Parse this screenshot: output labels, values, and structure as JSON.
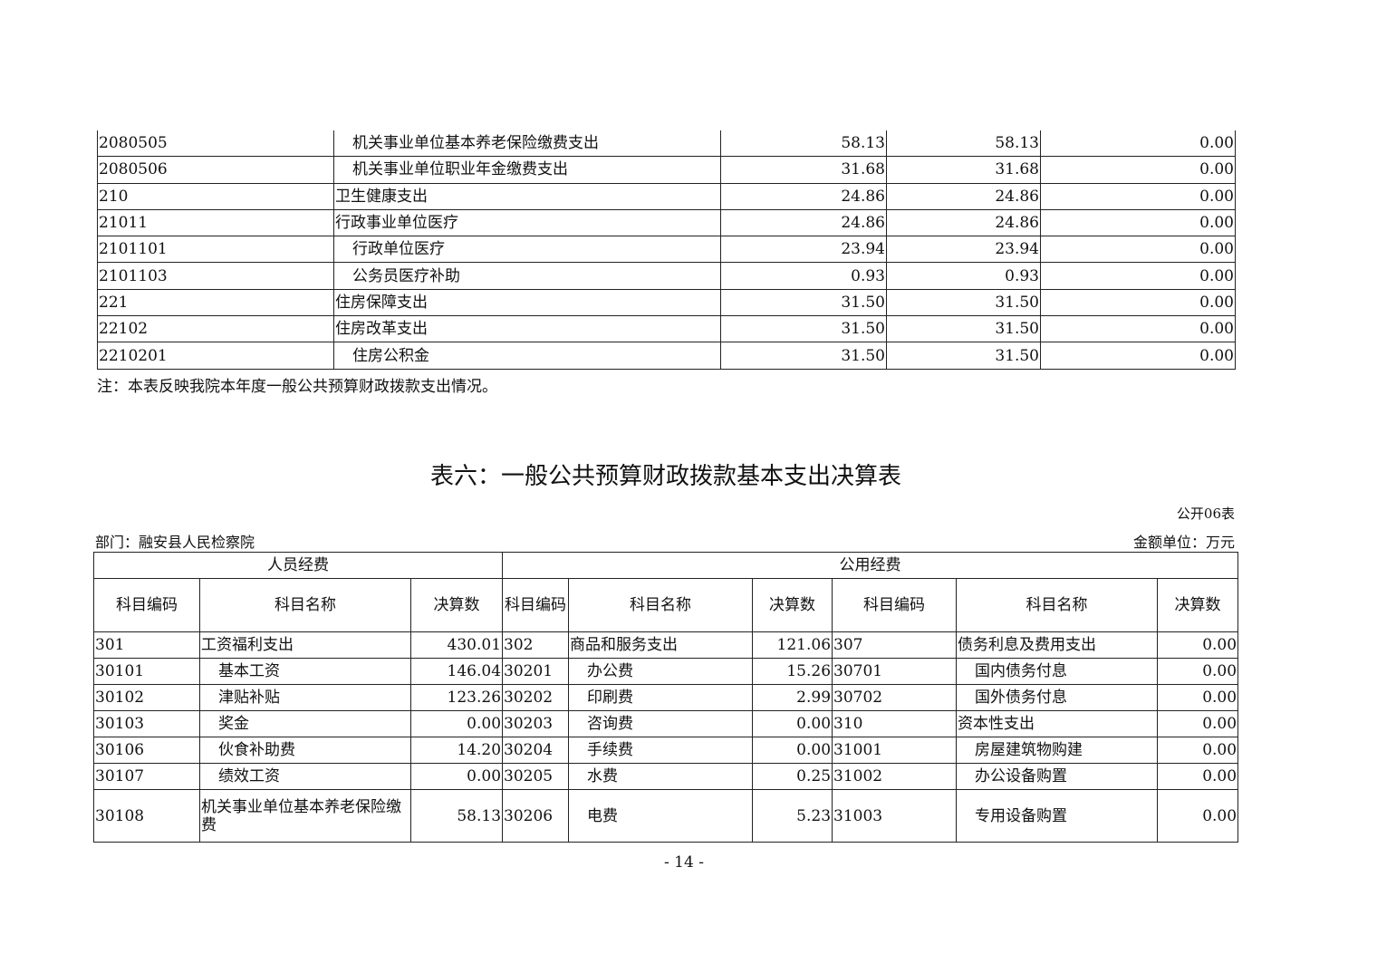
{
  "table_top": {
    "rows": [
      {
        "code": "2080505",
        "name": "机关事业单位基本养老保险缴费支出",
        "indent": true,
        "total": "58.13",
        "basic": "58.13",
        "project": "0.00"
      },
      {
        "code": "2080506",
        "name": "机关事业单位职业年金缴费支出",
        "indent": true,
        "total": "31.68",
        "basic": "31.68",
        "project": "0.00"
      },
      {
        "code": "210",
        "name": "卫生健康支出",
        "indent": false,
        "total": "24.86",
        "basic": "24.86",
        "project": "0.00"
      },
      {
        "code": "21011",
        "name": "行政事业单位医疗",
        "indent": false,
        "total": "24.86",
        "basic": "24.86",
        "project": "0.00"
      },
      {
        "code": "2101101",
        "name": "行政单位医疗",
        "indent": true,
        "total": "23.94",
        "basic": "23.94",
        "project": "0.00"
      },
      {
        "code": "2101103",
        "name": "公务员医疗补助",
        "indent": true,
        "total": "0.93",
        "basic": "0.93",
        "project": "0.00"
      },
      {
        "code": "221",
        "name": "住房保障支出",
        "indent": false,
        "total": "31.50",
        "basic": "31.50",
        "project": "0.00"
      },
      {
        "code": "22102",
        "name": "住房改革支出",
        "indent": false,
        "total": "31.50",
        "basic": "31.50",
        "project": "0.00"
      },
      {
        "code": "2210201",
        "name": "住房公积金",
        "indent": true,
        "total": "31.50",
        "basic": "31.50",
        "project": "0.00"
      }
    ],
    "note": "注：本表反映我院本年度一般公共预算财政拨款支出情况。"
  },
  "table6": {
    "title": "表六：一般公共预算财政拨款基本支出决算表",
    "form_no": "公开06表",
    "department": "部门：融安县人民检察院",
    "unit": "金额单位：万元",
    "group_personnel": "人员经费",
    "group_public": "公用经费",
    "headers": [
      "科目编码",
      "科目名称",
      "决算数",
      "科目编码",
      "科目名称",
      "决算数",
      "科目编码",
      "科目名称",
      "决算数"
    ],
    "rows": [
      [
        "301",
        "工资福利支出",
        "430.01",
        "302",
        "商品和服务支出",
        "121.06",
        "307",
        "债务利息及费用支出",
        "0.00"
      ],
      [
        "30101",
        "基本工资",
        "146.04",
        "30201",
        "办公费",
        "15.26",
        "30701",
        "国内债务付息",
        "0.00"
      ],
      [
        "30102",
        "津贴补贴",
        "123.26",
        "30202",
        "印刷费",
        "2.99",
        "30702",
        "国外债务付息",
        "0.00"
      ],
      [
        "30103",
        "奖金",
        "0.00",
        "30203",
        "咨询费",
        "0.00",
        "310",
        "资本性支出",
        "0.00"
      ],
      [
        "30106",
        "伙食补助费",
        "14.20",
        "30204",
        "手续费",
        "0.00",
        "31001",
        "房屋建筑物购建",
        "0.00"
      ],
      [
        "30107",
        "绩效工资",
        "0.00",
        "30205",
        "水费",
        "0.25",
        "31002",
        "办公设备购置",
        "0.00"
      ],
      [
        "30108",
        "机关事业单位基本养老保险缴费",
        "58.13",
        "30206",
        "电费",
        "5.23",
        "31003",
        "专用设备购置",
        "0.00"
      ]
    ],
    "indent": [
      [
        false,
        false,
        false
      ],
      [
        true,
        true,
        true
      ],
      [
        true,
        true,
        true
      ],
      [
        true,
        true,
        false
      ],
      [
        true,
        true,
        true
      ],
      [
        true,
        true,
        true
      ],
      [
        false,
        true,
        true
      ]
    ]
  },
  "page_number": "- 14 -"
}
